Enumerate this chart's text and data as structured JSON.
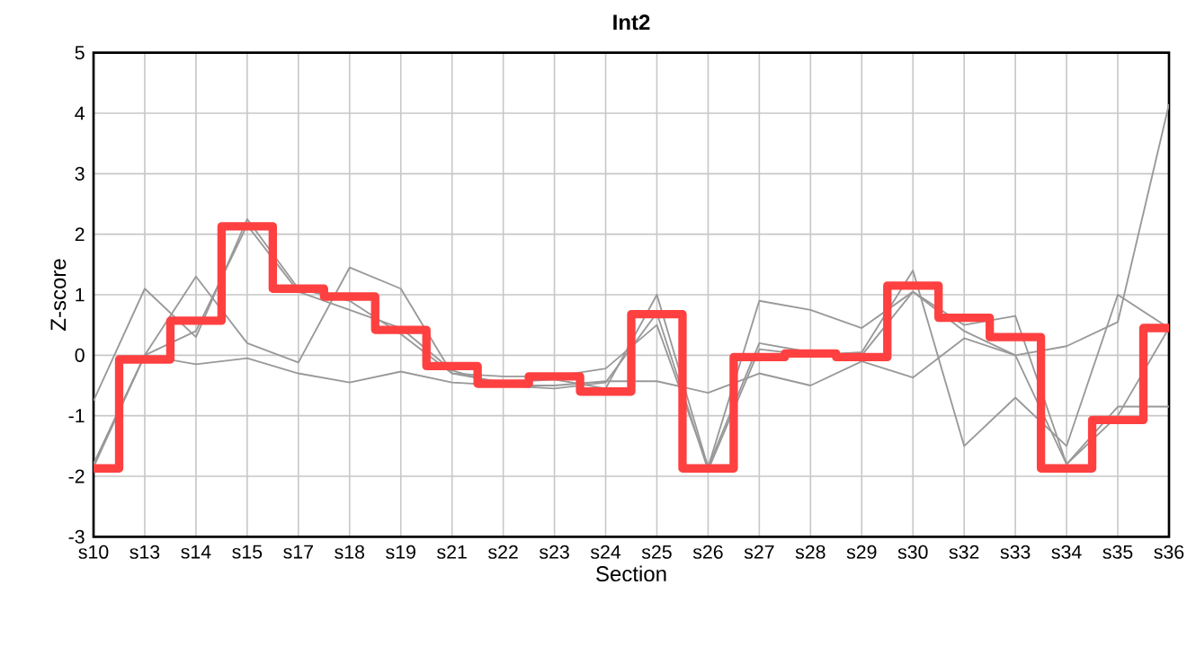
{
  "chart_data": {
    "type": "line",
    "title": "Int2",
    "xlabel": "Section",
    "ylabel": "Z-score",
    "categories": [
      "s10",
      "s13",
      "s14",
      "s15",
      "s17",
      "s18",
      "s19",
      "s21",
      "s22",
      "s23",
      "s24",
      "s25",
      "s26",
      "s27",
      "s28",
      "s29",
      "s30",
      "s32",
      "s33",
      "s34",
      "s35",
      "s36"
    ],
    "series": [
      {
        "color": "#999999",
        "values": [
          -0.75,
          1.1,
          0.3,
          2.25,
          1.1,
          0.9,
          0.35,
          -0.3,
          -0.45,
          -0.4,
          -0.55,
          1.0,
          -1.85,
          0.9,
          0.75,
          0.45,
          1.05,
          0.4,
          0.0,
          0.15,
          0.55,
          4.15
        ]
      },
      {
        "color": "#999999",
        "values": [
          -1.8,
          0.0,
          1.3,
          0.2,
          -0.12,
          1.45,
          1.1,
          -0.3,
          -0.35,
          -0.35,
          -0.22,
          0.5,
          -1.85,
          0.2,
          0.05,
          0.0,
          1.05,
          0.5,
          0.65,
          -1.8,
          -1.0,
          0.45
        ]
      },
      {
        "color": "#999999",
        "values": [
          -1.85,
          0.0,
          0.4,
          2.15,
          1.05,
          0.75,
          0.45,
          -0.25,
          -0.5,
          -0.55,
          -0.45,
          0.7,
          -1.9,
          0.1,
          0.0,
          0.05,
          1.4,
          -1.5,
          -0.7,
          -1.5,
          1.0,
          0.45
        ]
      },
      {
        "color": "#999999",
        "values": [
          -1.8,
          0.0,
          -0.15,
          -0.05,
          -0.3,
          -0.45,
          -0.27,
          -0.45,
          -0.5,
          -0.5,
          -0.43,
          -0.43,
          -0.62,
          -0.3,
          -0.5,
          -0.1,
          -0.37,
          0.28,
          0.0,
          -1.8,
          -0.85,
          -0.85
        ]
      },
      {
        "type": "step",
        "color": "#ff4040",
        "values": [
          -1.87,
          -0.07,
          0.57,
          2.13,
          1.1,
          0.97,
          0.42,
          -0.18,
          -0.47,
          -0.35,
          -0.6,
          0.68,
          -1.87,
          -0.03,
          0.03,
          -0.03,
          1.15,
          0.62,
          0.3,
          -1.87,
          -1.07,
          0.45
        ]
      }
    ],
    "ylim": [
      -3,
      5
    ],
    "yticks": [
      -3,
      -2,
      -1,
      0,
      1,
      2,
      3,
      4,
      5
    ],
    "grid": true
  }
}
